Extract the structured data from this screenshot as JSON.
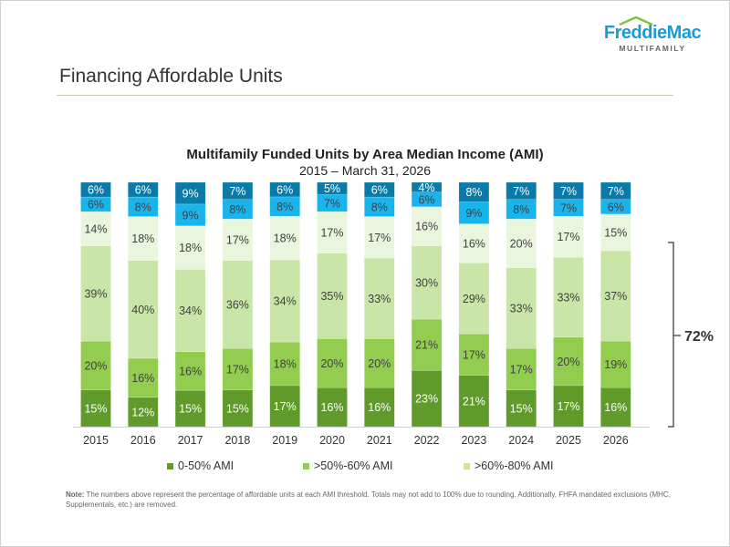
{
  "header": {
    "logo_text": "FreddieMac",
    "logo_subtext": "MULTIFAMILY",
    "page_title": "Financing Affordable Units"
  },
  "chart_data": {
    "type": "bar",
    "stacked": true,
    "title": "Multifamily Funded Units by Area Median Income (AMI)",
    "subtitle": "2015 – March 31, 2026",
    "categories": [
      "2015",
      "2016",
      "2017",
      "2018",
      "2019",
      "2020",
      "2021",
      "2022",
      "2023",
      "2024",
      "2025",
      "2026"
    ],
    "series": [
      {
        "name": "0-50% AMI",
        "color": "#5f9a2a",
        "label_color": "#ffffff",
        "values": [
          15,
          12,
          15,
          15,
          17,
          16,
          16,
          23,
          21,
          15,
          17,
          16
        ]
      },
      {
        "name": ">50%-60% AMI",
        "color": "#92cd50",
        "label_color": "#404040",
        "values": [
          20,
          16,
          16,
          17,
          18,
          20,
          20,
          21,
          17,
          17,
          20,
          19
        ]
      },
      {
        "name": ">60%-80% AMI",
        "color": "#c9e6a8",
        "label_color": "#404040",
        "values": [
          39,
          40,
          34,
          36,
          34,
          35,
          33,
          30,
          29,
          33,
          33,
          37
        ]
      },
      {
        "color": "#eaf5de",
        "label_color": "#404040",
        "values": [
          14,
          18,
          18,
          17,
          18,
          17,
          17,
          16,
          16,
          20,
          17,
          15
        ]
      },
      {
        "color": "#1ab4ec",
        "label_color": "#404040",
        "values": [
          6,
          8,
          9,
          8,
          8,
          7,
          8,
          6,
          9,
          8,
          7,
          6
        ]
      },
      {
        "color": "#0a7aa8",
        "label_color": "#ffffff",
        "values": [
          6,
          6,
          9,
          7,
          6,
          5,
          6,
          4,
          8,
          7,
          7,
          7
        ]
      }
    ],
    "value_suffix": "%",
    "bracket_label": "72%",
    "legend_position": "bottom",
    "grid": false
  },
  "note": {
    "label": "Note:",
    "text": " The numbers above represent the percentage of affordable units at each AMI threshold. Totals may not add to 100% due to rounding. Additionally, FHFA mandated exclusions (MHC, Supplementals, etc.) are removed."
  }
}
